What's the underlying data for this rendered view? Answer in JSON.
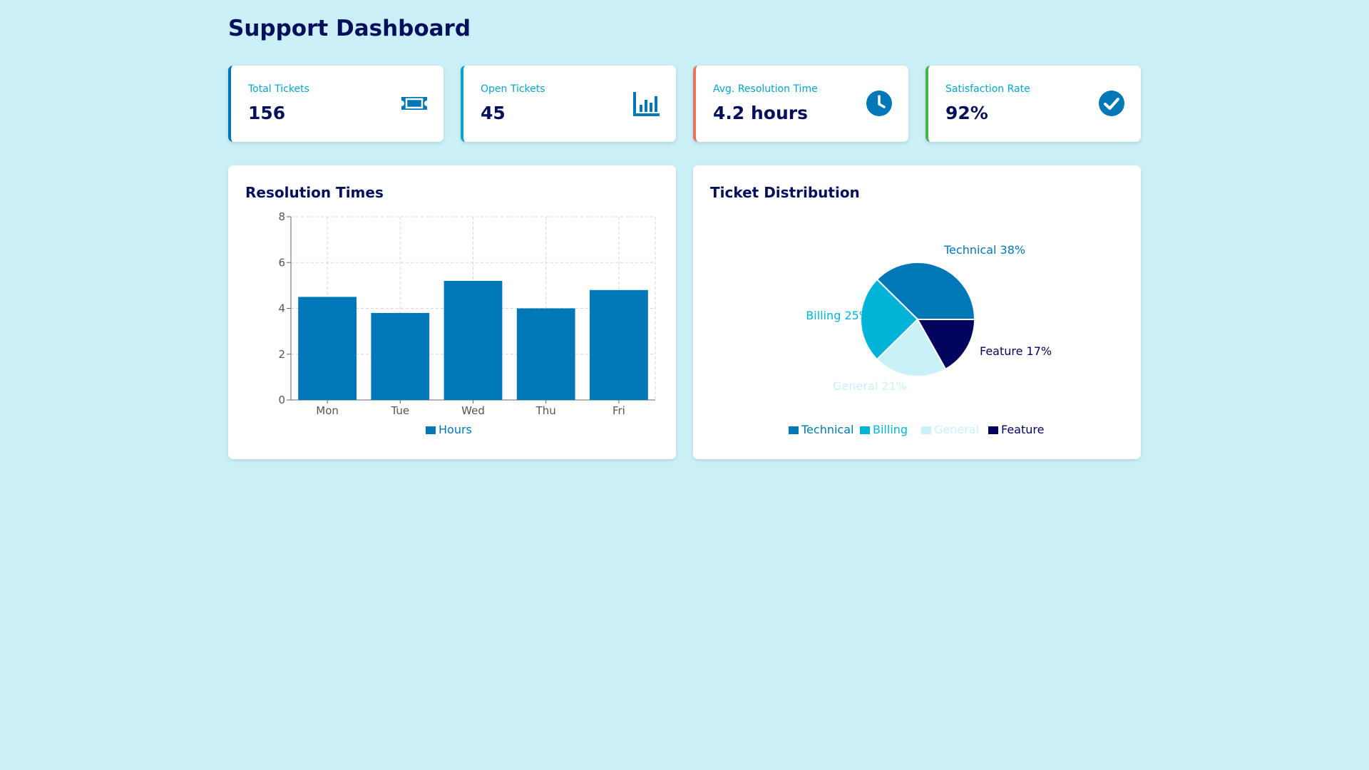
{
  "header": {
    "title": "Support Dashboard"
  },
  "stats": [
    {
      "label": "Total Tickets",
      "value": "156",
      "icon": "ticket-icon",
      "accent": "#0077b6"
    },
    {
      "label": "Open Tickets",
      "value": "45",
      "icon": "bar-chart-icon",
      "accent": "#00a5cf"
    },
    {
      "label": "Avg. Resolution Time",
      "value": "4.2 hours",
      "icon": "clock-icon",
      "accent": "#e8735f"
    },
    {
      "label": "Satisfaction Rate",
      "value": "92%",
      "icon": "check-circle-icon",
      "accent": "#4caf50"
    }
  ],
  "resolution_panel": {
    "title": "Resolution Times"
  },
  "distribution_panel": {
    "title": "Ticket Distribution"
  },
  "chart_data": [
    {
      "type": "bar",
      "categories": [
        "Mon",
        "Tue",
        "Wed",
        "Thu",
        "Fri"
      ],
      "series": [
        {
          "name": "Hours",
          "values": [
            4.5,
            3.8,
            5.2,
            4.0,
            4.8
          ],
          "color": "#0077b6"
        }
      ],
      "ylim": [
        0,
        8
      ],
      "yticks": [
        0,
        2,
        4,
        6,
        8
      ],
      "grid": true,
      "legend": "bottom"
    },
    {
      "type": "pie",
      "slices": [
        {
          "name": "Technical",
          "value": 38,
          "color": "#0077b6",
          "label": "Technical 38%"
        },
        {
          "name": "Billing",
          "value": 25,
          "color": "#00b4d8",
          "label": "Billing 25%"
        },
        {
          "name": "General",
          "value": 21,
          "color": "#caf0f8",
          "label": "General 21%"
        },
        {
          "name": "Feature",
          "value": 17,
          "color": "#03045e",
          "label": "Feature 17%"
        }
      ],
      "legend": "bottom"
    }
  ]
}
